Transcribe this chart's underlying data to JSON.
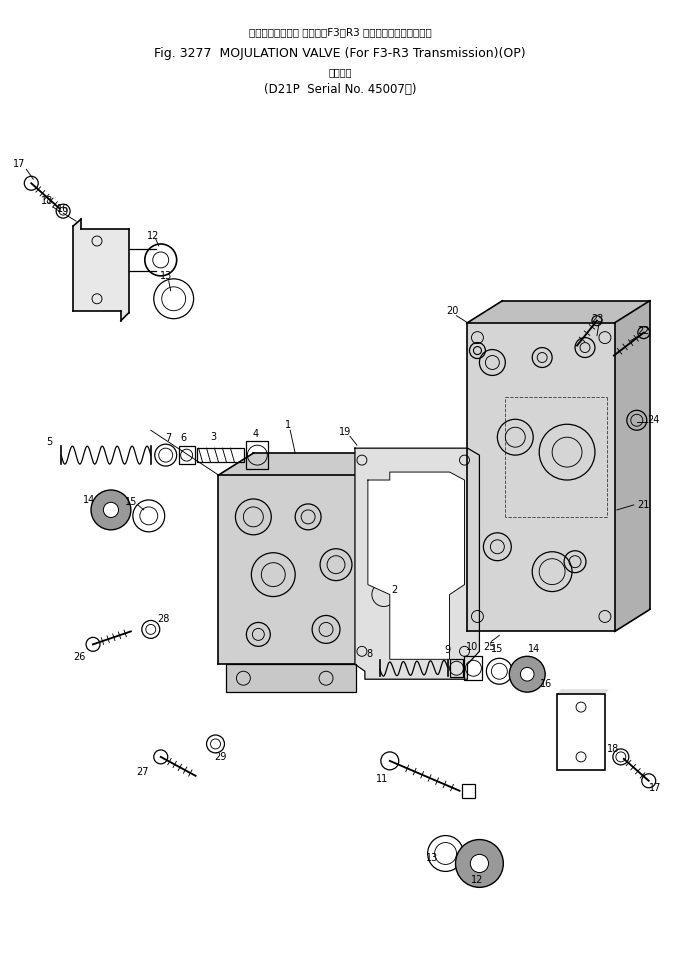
{
  "bg_color": "#ffffff",
  "line_color": "#000000",
  "title_line1": "モジュレーション バルブ（F3・R3 トランスミッション用）",
  "title_line2": "Fig. 3277  MOJULATION VALVE (For F3-R3 Transmission)(OP)",
  "title_line3": "適用号機",
  "title_line4": "(D21P  Serial No. 45007～)",
  "fig_width": 6.81,
  "fig_height": 9.73,
  "dpi": 100
}
